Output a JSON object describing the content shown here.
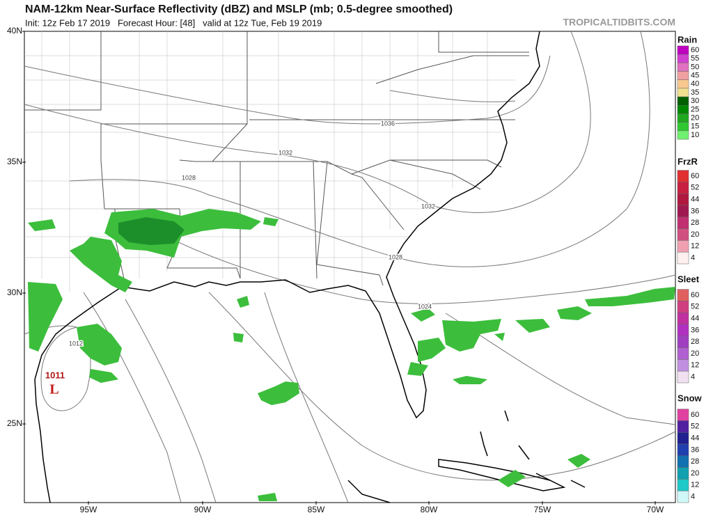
{
  "header": {
    "title": "NAM-12km Near-Surface Reflectivity (dBZ) and MSLP (mb; 0.5-degree smoothed)",
    "subtitle": "Init: 12z Feb 17 2019   Forecast Hour: [48]   valid at 12z Tue, Feb 19 2019",
    "watermark": "TROPICALTIDBITS.COM"
  },
  "map": {
    "lat_labels": [
      "40N",
      "35N",
      "30N",
      "25N"
    ],
    "lon_labels": [
      "95W",
      "90W",
      "85W",
      "80W",
      "75W",
      "70W"
    ],
    "isobar_labels": [
      "1036",
      "1032",
      "1028",
      "1032",
      "1028",
      "1024",
      "1012"
    ],
    "low": {
      "pressure": "1011",
      "symbol": "L"
    }
  },
  "legend": [
    {
      "name": "Rain",
      "labels": [
        "60",
        "55",
        "50",
        "45",
        "40",
        "35",
        "30",
        "25",
        "20",
        "15",
        "10"
      ],
      "colors": [
        "#c000c0",
        "#d040d0",
        "#e070c0",
        "#f0a0a0",
        "#f8c890",
        "#f0e090",
        "#006000",
        "#008800",
        "#20a820",
        "#30c830",
        "#70f070"
      ]
    },
    {
      "name": "FrzR",
      "labels": [
        "60",
        "52",
        "44",
        "36",
        "28",
        "20",
        "12",
        "4"
      ],
      "colors": [
        "#e03030",
        "#c82040",
        "#b01840",
        "#a01850",
        "#c03070",
        "#d05080",
        "#f0a0b0",
        "#fff0f0"
      ]
    },
    {
      "name": "Sleet",
      "labels": [
        "60",
        "52",
        "44",
        "36",
        "28",
        "20",
        "12",
        "4"
      ],
      "colors": [
        "#e06060",
        "#d04080",
        "#c030a0",
        "#b030c0",
        "#a040c0",
        "#b060d0",
        "#c090e0",
        "#f0e0f0"
      ]
    },
    {
      "name": "Snow",
      "labels": [
        "60",
        "52",
        "44",
        "36",
        "28",
        "20",
        "12",
        "4"
      ],
      "colors": [
        "#e040a0",
        "#5020a0",
        "#202090",
        "#2040b0",
        "#1070b0",
        "#10a0b0",
        "#20c8c8",
        "#d0f8f8"
      ]
    }
  ]
}
